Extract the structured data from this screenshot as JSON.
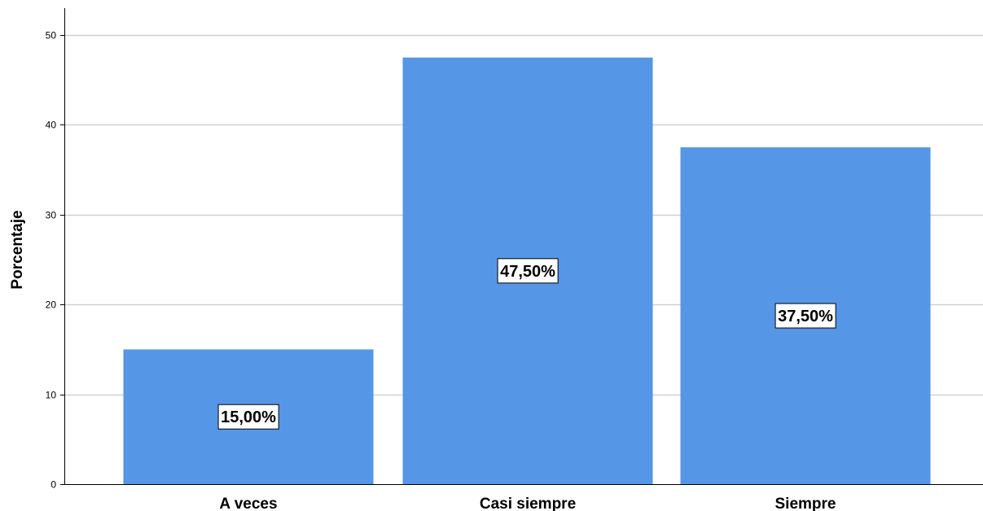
{
  "chart_data": {
    "type": "bar",
    "title": "",
    "xlabel": "",
    "ylabel": "Porcentaje",
    "categories": [
      "A veces",
      "Casi siempre",
      "Siempre"
    ],
    "values": [
      15.0,
      47.5,
      37.5
    ],
    "data_labels": [
      "15,00%",
      "47,50%",
      "37,50%"
    ],
    "yticks": [
      0,
      10,
      20,
      30,
      40,
      50
    ],
    "ylim": [
      0,
      53
    ],
    "grid": true,
    "colors": {
      "bar": "#5596e6",
      "grid": "#d0d0d0",
      "axis": "#000000"
    }
  }
}
